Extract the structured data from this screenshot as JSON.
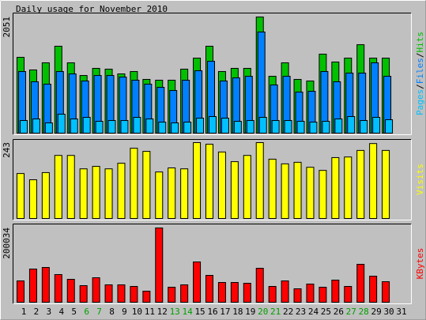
{
  "chart_data": {
    "type": "bar",
    "title": "Daily usage for November 2010",
    "categories": [
      "1",
      "2",
      "3",
      "4",
      "5",
      "6",
      "7",
      "8",
      "9",
      "10",
      "11",
      "12",
      "13",
      "14",
      "15",
      "16",
      "17",
      "18",
      "19",
      "20",
      "21",
      "22",
      "23",
      "24",
      "25",
      "26",
      "27",
      "28",
      "29",
      "30",
      "31"
    ],
    "weekend_indices": [
      5,
      6,
      12,
      13,
      19,
      20,
      26,
      27
    ],
    "weekend_color": "#00a000",
    "panels": [
      {
        "ylim": [
          0,
          2051
        ],
        "yticks": [
          2051
        ],
        "series": [
          {
            "name": "Hits",
            "color": "#00c000",
            "values": [
              1339,
              1116,
              1242,
              1535,
              1242,
              1018,
              1144,
              1130,
              1046,
              1088,
              949,
              935,
              935,
              1130,
              1325,
              1535,
              1088,
              1144,
              1144,
              2051,
              1004,
              1242,
              949,
              921,
              1395,
              1256,
              1325,
              1562,
              1325,
              1325,
              null
            ]
          },
          {
            "name": "Files",
            "color": "#0080ff",
            "values": [
              1088,
              907,
              865,
              1088,
              1046,
              921,
              1018,
              1018,
              990,
              935,
              865,
              809,
              753,
              935,
              1102,
              1269,
              921,
              976,
              1004,
              1786,
              851,
              1004,
              725,
              739,
              1088,
              907,
              1060,
              1060,
              1242,
              1004,
              null
            ]
          },
          {
            "name": "Pages",
            "color": "#00c0ff",
            "values": [
              223,
              251,
              181,
              335,
              251,
              279,
              209,
              223,
              223,
              279,
              251,
              195,
              181,
              195,
              265,
              293,
              265,
              209,
              223,
              279,
              223,
              223,
              209,
              195,
              209,
              251,
              293,
              223,
              279,
              237,
              null
            ]
          }
        ]
      },
      {
        "ylim": [
          0,
          243
        ],
        "yticks": [
          243
        ],
        "series": [
          {
            "name": "Visits",
            "color": "#ffff00",
            "values": [
              144,
              124,
              147,
              202,
              202,
              159,
              167,
              159,
              177,
              225,
              215,
              149,
              162,
              159,
              243,
              238,
              213,
              182,
              202,
              243,
              190,
              175,
              180,
              164,
              154,
              195,
              197,
              218,
              240,
              218,
              null
            ]
          }
        ]
      },
      {
        "ylim": [
          0,
          200034
        ],
        "yticks": [
          200034
        ],
        "series": [
          {
            "name": "KBytes",
            "color": "#ff0000",
            "values": [
              57456,
              89376,
              93632,
              74480,
              61712,
              44688,
              65968,
              46816,
              46816,
              42560,
              29792,
              200034,
              40432,
              46816,
              108528,
              72352,
              53200,
              53200,
              51072,
              91504,
              42560,
              57456,
              36176,
              48944,
              40432,
              59584,
              42560,
              102144,
              70224,
              55328,
              null
            ]
          }
        ]
      }
    ]
  }
}
